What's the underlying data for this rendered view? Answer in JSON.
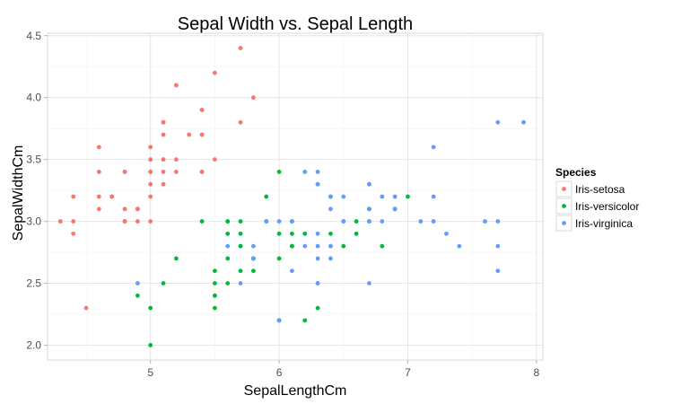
{
  "chart_data": {
    "type": "scatter",
    "title": "Sepal Width vs. Sepal Length",
    "xlabel": "SepalLengthCm",
    "ylabel": "SepalWidthCm",
    "xlim": [
      4.2,
      8.05
    ],
    "ylim": [
      1.88,
      4.52
    ],
    "xticks": [
      5,
      6,
      7,
      8
    ],
    "xtick_labels": [
      "5",
      "6",
      "7",
      "8"
    ],
    "yticks": [
      2.0,
      2.5,
      3.0,
      3.5,
      4.0,
      4.5
    ],
    "ytick_labels": [
      "2.0",
      "2.5",
      "3.0",
      "3.5",
      "4.0",
      "4.5"
    ],
    "grid": true,
    "legend": {
      "title": "Species",
      "placement": "right"
    },
    "series": [
      {
        "name": "Iris-setosa",
        "color": "#F8766D",
        "points": [
          [
            5.1,
            3.5
          ],
          [
            4.9,
            3.0
          ],
          [
            4.7,
            3.2
          ],
          [
            4.6,
            3.1
          ],
          [
            5.0,
            3.6
          ],
          [
            5.4,
            3.9
          ],
          [
            4.6,
            3.4
          ],
          [
            5.0,
            3.4
          ],
          [
            4.4,
            2.9
          ],
          [
            4.9,
            3.1
          ],
          [
            5.4,
            3.7
          ],
          [
            4.8,
            3.4
          ],
          [
            4.8,
            3.0
          ],
          [
            4.3,
            3.0
          ],
          [
            5.8,
            4.0
          ],
          [
            5.7,
            4.4
          ],
          [
            5.4,
            3.9
          ],
          [
            5.1,
            3.5
          ],
          [
            5.7,
            3.8
          ],
          [
            5.1,
            3.8
          ],
          [
            5.4,
            3.4
          ],
          [
            5.1,
            3.7
          ],
          [
            4.6,
            3.6
          ],
          [
            5.1,
            3.3
          ],
          [
            4.8,
            3.4
          ],
          [
            5.0,
            3.0
          ],
          [
            5.0,
            3.4
          ],
          [
            5.2,
            3.5
          ],
          [
            5.2,
            3.4
          ],
          [
            4.7,
            3.2
          ],
          [
            4.8,
            3.1
          ],
          [
            5.4,
            3.4
          ],
          [
            5.2,
            4.1
          ],
          [
            5.5,
            4.2
          ],
          [
            4.9,
            3.1
          ],
          [
            5.0,
            3.2
          ],
          [
            5.5,
            3.5
          ],
          [
            4.9,
            3.1
          ],
          [
            4.4,
            3.0
          ],
          [
            5.1,
            3.4
          ],
          [
            5.0,
            3.5
          ],
          [
            4.5,
            2.3
          ],
          [
            4.4,
            3.2
          ],
          [
            5.0,
            3.5
          ],
          [
            5.1,
            3.8
          ],
          [
            4.8,
            3.0
          ],
          [
            5.1,
            3.8
          ],
          [
            4.6,
            3.2
          ],
          [
            5.3,
            3.7
          ],
          [
            5.0,
            3.3
          ]
        ]
      },
      {
        "name": "Iris-versicolor",
        "color": "#00BA38",
        "points": [
          [
            7.0,
            3.2
          ],
          [
            6.4,
            3.2
          ],
          [
            6.9,
            3.1
          ],
          [
            5.5,
            2.3
          ],
          [
            6.5,
            2.8
          ],
          [
            5.7,
            2.8
          ],
          [
            6.3,
            3.3
          ],
          [
            4.9,
            2.4
          ],
          [
            6.6,
            2.9
          ],
          [
            5.2,
            2.7
          ],
          [
            5.0,
            2.0
          ],
          [
            5.9,
            3.0
          ],
          [
            6.0,
            2.2
          ],
          [
            6.1,
            2.9
          ],
          [
            5.6,
            2.9
          ],
          [
            6.7,
            3.1
          ],
          [
            5.6,
            3.0
          ],
          [
            5.8,
            2.7
          ],
          [
            6.2,
            2.2
          ],
          [
            5.6,
            2.5
          ],
          [
            5.9,
            3.2
          ],
          [
            6.1,
            2.8
          ],
          [
            6.3,
            2.5
          ],
          [
            6.1,
            2.8
          ],
          [
            6.4,
            2.9
          ],
          [
            6.6,
            3.0
          ],
          [
            6.8,
            2.8
          ],
          [
            6.7,
            3.0
          ],
          [
            6.0,
            2.9
          ],
          [
            5.7,
            2.6
          ],
          [
            5.5,
            2.4
          ],
          [
            5.5,
            2.4
          ],
          [
            5.8,
            2.7
          ],
          [
            6.0,
            2.7
          ],
          [
            5.4,
            3.0
          ],
          [
            6.0,
            3.4
          ],
          [
            6.7,
            3.1
          ],
          [
            6.3,
            2.3
          ],
          [
            5.6,
            3.0
          ],
          [
            5.5,
            2.5
          ],
          [
            5.5,
            2.6
          ],
          [
            6.1,
            3.0
          ],
          [
            5.8,
            2.6
          ],
          [
            5.0,
            2.3
          ],
          [
            5.6,
            2.7
          ],
          [
            5.7,
            3.0
          ],
          [
            5.7,
            2.9
          ],
          [
            6.2,
            2.9
          ],
          [
            5.1,
            2.5
          ],
          [
            5.7,
            2.8
          ]
        ]
      },
      {
        "name": "Iris-virginica",
        "color": "#619CFF",
        "points": [
          [
            6.3,
            3.3
          ],
          [
            5.8,
            2.7
          ],
          [
            7.1,
            3.0
          ],
          [
            6.3,
            2.9
          ],
          [
            6.5,
            3.0
          ],
          [
            7.6,
            3.0
          ],
          [
            4.9,
            2.5
          ],
          [
            7.3,
            2.9
          ],
          [
            6.7,
            2.5
          ],
          [
            7.2,
            3.6
          ],
          [
            6.5,
            3.2
          ],
          [
            6.4,
            2.7
          ],
          [
            6.8,
            3.0
          ],
          [
            5.7,
            2.5
          ],
          [
            5.8,
            2.8
          ],
          [
            6.4,
            3.2
          ],
          [
            6.5,
            3.0
          ],
          [
            7.7,
            3.8
          ],
          [
            7.7,
            2.6
          ],
          [
            6.0,
            2.2
          ],
          [
            6.9,
            3.2
          ],
          [
            5.6,
            2.8
          ],
          [
            7.7,
            2.8
          ],
          [
            6.3,
            2.7
          ],
          [
            6.7,
            3.3
          ],
          [
            7.2,
            3.2
          ],
          [
            6.2,
            2.8
          ],
          [
            6.1,
            3.0
          ],
          [
            6.4,
            2.8
          ],
          [
            7.2,
            3.0
          ],
          [
            7.4,
            2.8
          ],
          [
            7.9,
            3.8
          ],
          [
            6.4,
            2.8
          ],
          [
            6.3,
            2.8
          ],
          [
            6.1,
            2.6
          ],
          [
            7.7,
            3.0
          ],
          [
            6.3,
            3.4
          ],
          [
            6.4,
            3.1
          ],
          [
            6.0,
            3.0
          ],
          [
            6.9,
            3.1
          ],
          [
            6.7,
            3.1
          ],
          [
            6.9,
            3.1
          ],
          [
            5.8,
            2.7
          ],
          [
            6.8,
            3.2
          ],
          [
            6.7,
            3.3
          ],
          [
            6.7,
            3.0
          ],
          [
            6.3,
            2.5
          ],
          [
            6.5,
            3.0
          ],
          [
            6.2,
            3.4
          ],
          [
            5.9,
            3.0
          ]
        ]
      }
    ]
  }
}
